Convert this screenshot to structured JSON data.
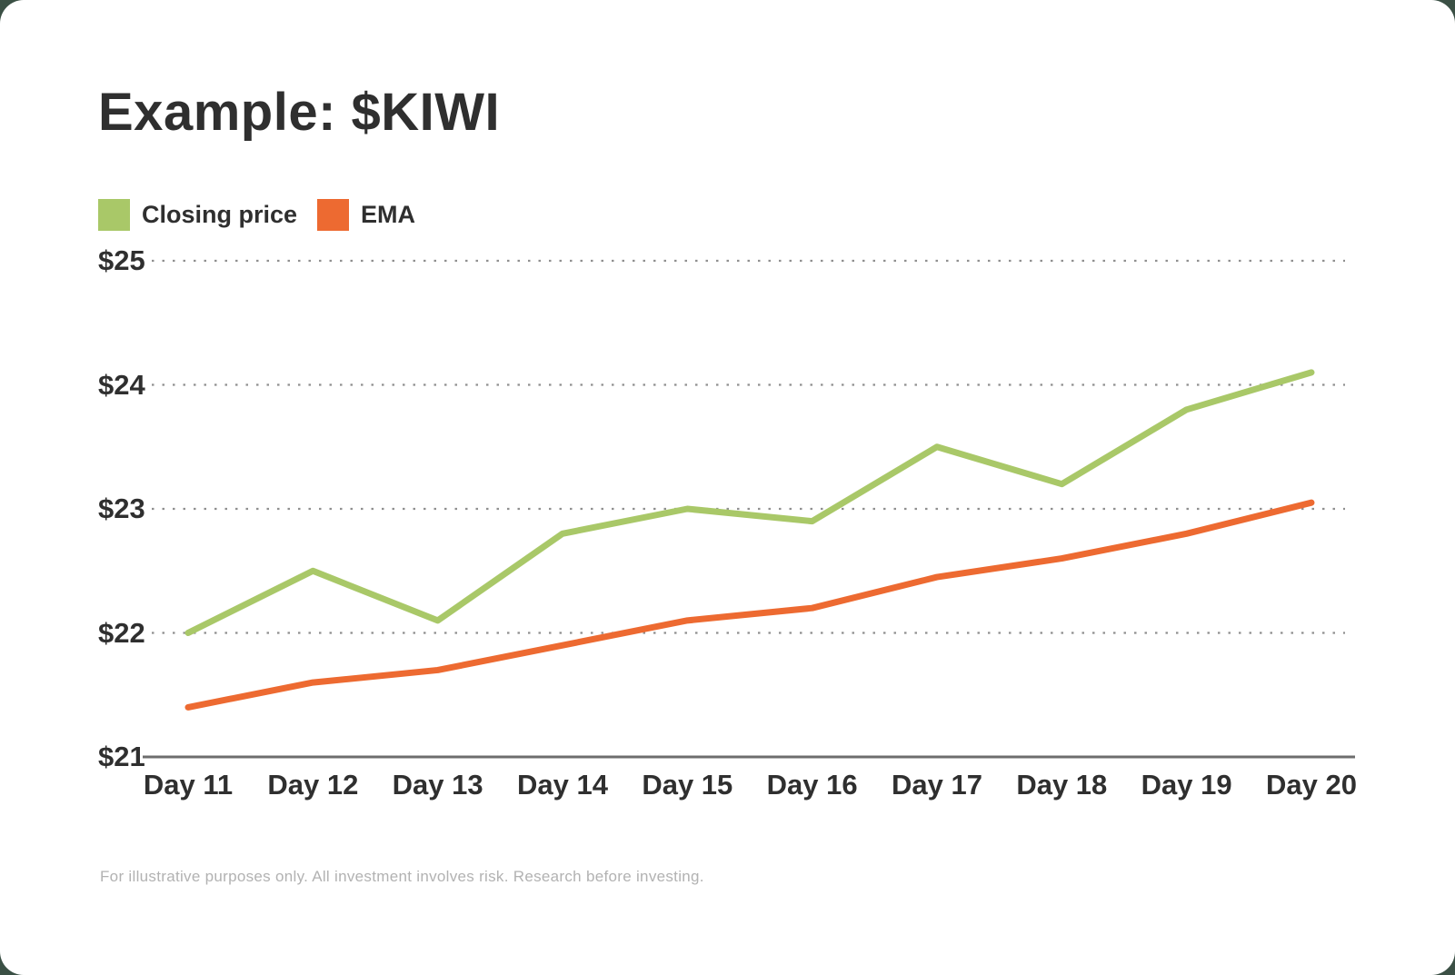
{
  "title": "Example: $KIWI",
  "footnote": "For illustrative purposes only. All investment involves risk. Research before investing.",
  "colors": {
    "page_background": "#3b5045",
    "card_background": "#ffffff",
    "text": "#2f2f2f",
    "gridline": "#8f8f8f",
    "axis_line": "#6d6d6d",
    "footnote_text": "#b2b2b2",
    "closing_price_line": "#a9c868",
    "ema_line": "#ed6a31"
  },
  "chart_data": {
    "type": "line",
    "title": "Example: $KIWI",
    "categories": [
      "Day 11",
      "Day 12",
      "Day 13",
      "Day 14",
      "Day 15",
      "Day 16",
      "Day 17",
      "Day 18",
      "Day 19",
      "Day 20"
    ],
    "series": [
      {
        "name": "Closing price",
        "color": "#a9c868",
        "values": [
          22.0,
          22.5,
          22.1,
          22.8,
          23.0,
          22.9,
          23.5,
          23.2,
          23.8,
          24.1
        ]
      },
      {
        "name": "EMA",
        "color": "#ed6a31",
        "values": [
          21.4,
          21.6,
          21.7,
          21.9,
          22.1,
          22.2,
          22.45,
          22.6,
          22.8,
          23.05
        ]
      }
    ],
    "xlabel": "",
    "ylabel": "",
    "ylim": [
      21,
      25
    ],
    "yticks": [
      {
        "label": "$25",
        "value": 25
      },
      {
        "label": "$24",
        "value": 24
      },
      {
        "label": "$23",
        "value": 23
      },
      {
        "label": "$22",
        "value": 22
      },
      {
        "label": "$21",
        "value": 21
      }
    ],
    "grid": "dotted-horizontal",
    "legend_position": "top-left"
  }
}
